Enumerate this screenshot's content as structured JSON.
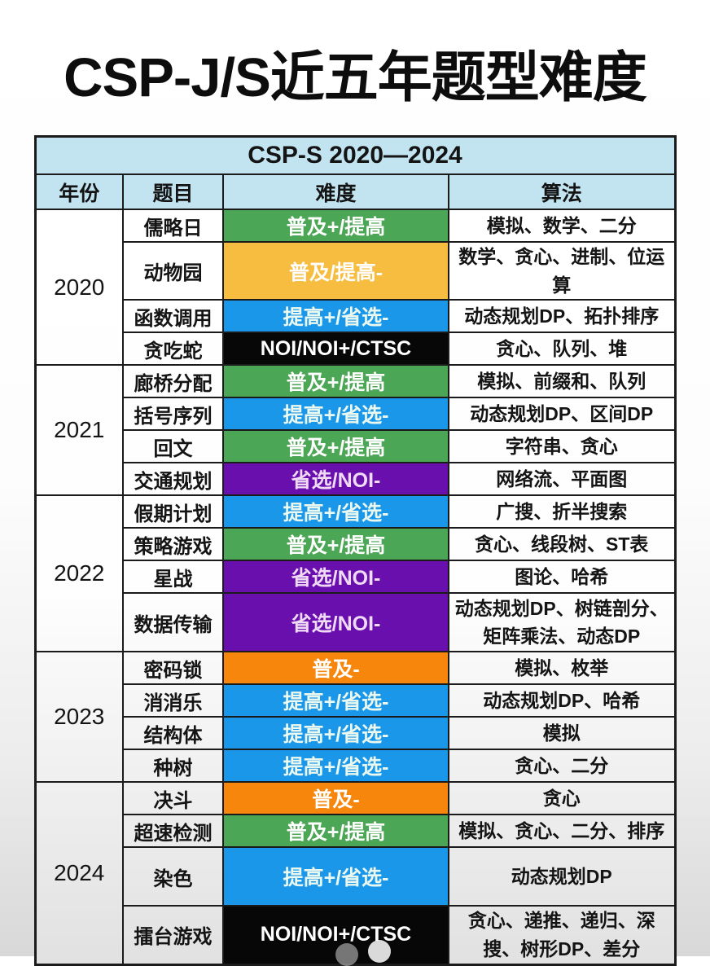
{
  "page_title": "CSP-J/S近五年题型难度",
  "chart_data": {
    "type": "table",
    "title": "CSP-J/S近五年题型难度",
    "subtitle": "CSP-S 2020—2024",
    "columns": [
      "年份",
      "题目",
      "难度",
      "算法"
    ],
    "difficulty_levels": {
      "green": {
        "label": "普及+/提高",
        "bg": "#4ba655",
        "fg": "#ffffff"
      },
      "amber": {
        "label": "普及/提高-",
        "bg": "#f7bd40",
        "fg": "#ffffff"
      },
      "blue": {
        "label": "提高+/省选-",
        "bg": "#1b97e9",
        "fg": "#eaf8ef"
      },
      "purple": {
        "label": "省选/NOI-",
        "bg": "#690fae",
        "fg": "#f0dbf6"
      },
      "orange": {
        "label": "普及-",
        "bg": "#f6860c",
        "fg": "#ffffff"
      },
      "black": {
        "label": "NOI/NOI+/CTSC",
        "bg": "#070707",
        "fg": "#ffffff"
      }
    },
    "groups": [
      {
        "year": "2020",
        "rows": [
          {
            "problem": "儒略日",
            "difficulty": "普及+/提高",
            "level": "green",
            "algorithms": "模拟、数学、二分"
          },
          {
            "problem": "动物园",
            "difficulty": "普及/提高-",
            "level": "amber",
            "algorithms": "数学、贪心、进制、位运算"
          },
          {
            "problem": "函数调用",
            "difficulty": "提高+/省选-",
            "level": "blue",
            "algorithms": "动态规划DP、拓扑排序"
          },
          {
            "problem": "贪吃蛇",
            "difficulty": "NOI/NOI+/CTSC",
            "level": "black",
            "algorithms": "贪心、队列、堆"
          }
        ]
      },
      {
        "year": "2021",
        "rows": [
          {
            "problem": "廊桥分配",
            "difficulty": "普及+/提高",
            "level": "green",
            "algorithms": "模拟、前缀和、队列"
          },
          {
            "problem": "括号序列",
            "difficulty": "提高+/省选-",
            "level": "blue",
            "algorithms": "动态规划DP、区间DP"
          },
          {
            "problem": "回文",
            "difficulty": "普及+/提高",
            "level": "green",
            "algorithms": "字符串、贪心"
          },
          {
            "problem": "交通规划",
            "difficulty": "省选/NOI-",
            "level": "purple",
            "algorithms": "网络流、平面图"
          }
        ]
      },
      {
        "year": "2022",
        "rows": [
          {
            "problem": "假期计划",
            "difficulty": "提高+/省选-",
            "level": "blue",
            "algorithms": "广搜、折半搜索"
          },
          {
            "problem": "策略游戏",
            "difficulty": "普及+/提高",
            "level": "green",
            "algorithms": "贪心、线段树、ST表"
          },
          {
            "problem": "星战",
            "difficulty": "省选/NOI-",
            "level": "purple",
            "algorithms": "图论、哈希"
          },
          {
            "problem": "数据传输",
            "difficulty": "省选/NOI-",
            "level": "purple",
            "algorithms": "动态规划DP、树链剖分、矩阵乘法、动态DP",
            "tall": true
          }
        ]
      },
      {
        "year": "2023",
        "rows": [
          {
            "problem": "密码锁",
            "difficulty": "普及-",
            "level": "orange",
            "algorithms": "模拟、枚举"
          },
          {
            "problem": "消消乐",
            "difficulty": "提高+/省选-",
            "level": "blue",
            "algorithms": "动态规划DP、哈希"
          },
          {
            "problem": "结构体",
            "difficulty": "提高+/省选-",
            "level": "blue",
            "algorithms": "模拟"
          },
          {
            "problem": "种树",
            "difficulty": "提高+/省选-",
            "level": "blue",
            "algorithms": "贪心、二分"
          }
        ]
      },
      {
        "year": "2024",
        "rows": [
          {
            "problem": "决斗",
            "difficulty": "普及-",
            "level": "orange",
            "algorithms": "贪心"
          },
          {
            "problem": "超速检测",
            "difficulty": "普及+/提高",
            "level": "green",
            "algorithms": "模拟、贪心、二分、排序"
          },
          {
            "problem": "染色",
            "difficulty": "提高+/省选-",
            "level": "blue",
            "algorithms": "动态规划DP",
            "tall": true
          },
          {
            "problem": "擂台游戏",
            "difficulty": "NOI/NOI+/CTSC",
            "level": "black",
            "algorithms": "贪心、递推、递归、深搜、树形DP、差分",
            "tall": true
          }
        ]
      }
    ],
    "theme": {
      "header_bg": "#c2e4f1",
      "border_color": "#1b1b1b",
      "title_color": "#0d0d0d"
    }
  }
}
